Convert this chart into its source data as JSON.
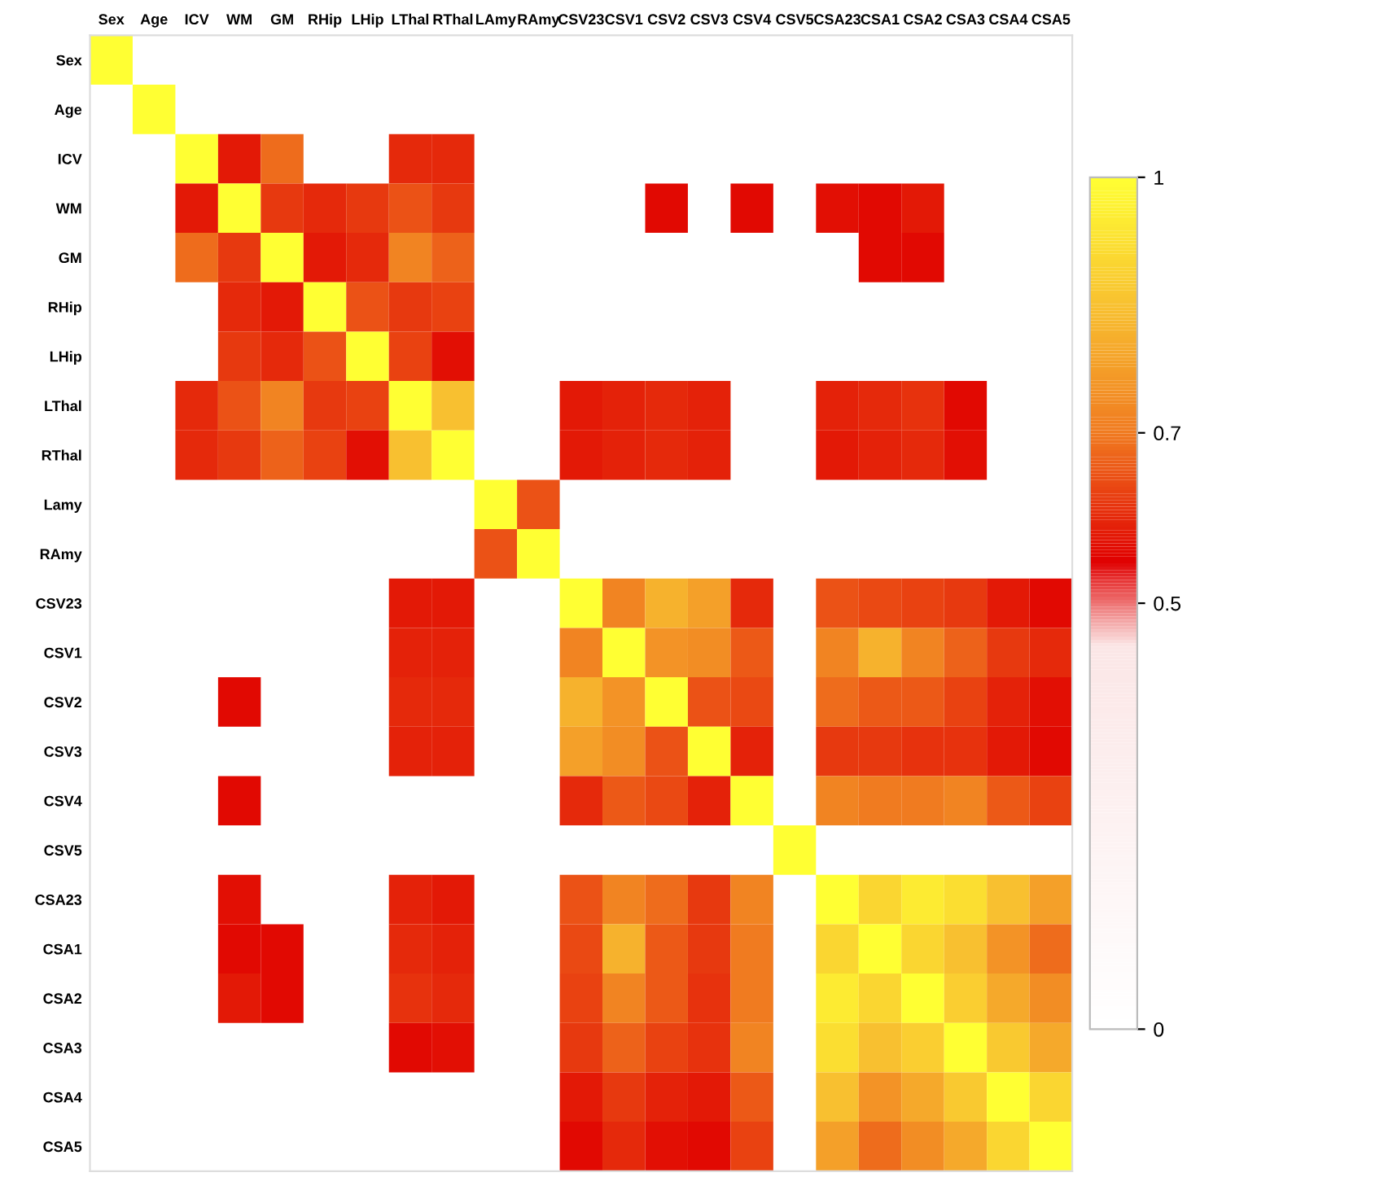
{
  "chart_data": {
    "type": "heatmap",
    "categories": [
      "Sex",
      "Age",
      "ICV",
      "WM",
      "GM",
      "RHip",
      "LHip",
      "LThal",
      "RThal",
      "LAmy",
      "RAmy",
      "CSV23",
      "CSV1",
      "CSV2",
      "CSV3",
      "CSV4",
      "CSV5",
      "CSA23",
      "CSA1",
      "CSA2",
      "CSA3",
      "CSA4",
      "CSA5"
    ],
    "y_categories": [
      "Sex",
      "Age",
      "ICV",
      "WM",
      "GM",
      "RHip",
      "LHip",
      "LThal",
      "RThal",
      "Lamy",
      "RAmy",
      "CSV23",
      "CSV1",
      "CSV2",
      "CSV3",
      "CSV4",
      "CSV5",
      "CSA23",
      "CSA1",
      "CSA2",
      "CSA3",
      "CSA4",
      "CSA5"
    ],
    "cells": [
      [
        1,
        null,
        null,
        null,
        null,
        null,
        null,
        null,
        null,
        null,
        null,
        null,
        null,
        null,
        null,
        null,
        null,
        null,
        null,
        null,
        null,
        null,
        null
      ],
      [
        null,
        1,
        null,
        null,
        null,
        null,
        null,
        null,
        null,
        null,
        null,
        null,
        null,
        null,
        null,
        null,
        null,
        null,
        null,
        null,
        null,
        null,
        null
      ],
      [
        null,
        null,
        1,
        0.58,
        0.68,
        null,
        null,
        0.6,
        0.6,
        null,
        null,
        null,
        null,
        null,
        null,
        null,
        null,
        null,
        null,
        null,
        null,
        null,
        null
      ],
      [
        null,
        null,
        0.58,
        1,
        0.62,
        0.6,
        0.62,
        0.65,
        0.62,
        null,
        null,
        null,
        null,
        0.56,
        null,
        0.56,
        null,
        0.57,
        0.56,
        0.58,
        null,
        null,
        null
      ],
      [
        null,
        null,
        0.68,
        0.62,
        1,
        0.58,
        0.6,
        0.72,
        0.67,
        null,
        null,
        null,
        null,
        null,
        null,
        null,
        null,
        null,
        0.56,
        0.56,
        null,
        null,
        null
      ],
      [
        null,
        null,
        null,
        0.6,
        0.58,
        1,
        0.65,
        0.62,
        0.63,
        null,
        null,
        null,
        null,
        null,
        null,
        null,
        null,
        null,
        null,
        null,
        null,
        null,
        null
      ],
      [
        null,
        null,
        null,
        0.62,
        0.6,
        0.65,
        1,
        0.63,
        0.57,
        null,
        null,
        null,
        null,
        null,
        null,
        null,
        null,
        null,
        null,
        null,
        null,
        null,
        null
      ],
      [
        null,
        null,
        0.6,
        0.65,
        0.72,
        0.62,
        0.63,
        1,
        0.85,
        null,
        null,
        0.58,
        0.59,
        0.6,
        0.59,
        null,
        null,
        0.59,
        0.6,
        0.61,
        0.56,
        null,
        null
      ],
      [
        null,
        null,
        0.6,
        0.62,
        0.67,
        0.63,
        0.57,
        0.85,
        1,
        null,
        null,
        0.58,
        0.59,
        0.6,
        0.59,
        null,
        null,
        0.58,
        0.59,
        0.6,
        0.57,
        null,
        null
      ],
      [
        null,
        null,
        null,
        null,
        null,
        null,
        null,
        null,
        null,
        1,
        0.65,
        null,
        null,
        null,
        null,
        null,
        null,
        null,
        null,
        null,
        null,
        null,
        null
      ],
      [
        null,
        null,
        null,
        null,
        null,
        null,
        null,
        null,
        null,
        0.65,
        1,
        null,
        null,
        null,
        null,
        null,
        null,
        null,
        null,
        null,
        null,
        null,
        null
      ],
      [
        null,
        null,
        null,
        null,
        null,
        null,
        null,
        0.58,
        0.58,
        null,
        null,
        1,
        0.72,
        0.82,
        0.78,
        0.6,
        null,
        0.65,
        0.64,
        0.63,
        0.62,
        0.58,
        0.56
      ],
      [
        null,
        null,
        null,
        null,
        null,
        null,
        null,
        0.59,
        0.59,
        null,
        null,
        0.72,
        1,
        0.75,
        0.74,
        0.66,
        null,
        0.72,
        0.82,
        0.72,
        0.67,
        0.62,
        0.6
      ],
      [
        null,
        null,
        null,
        0.56,
        null,
        null,
        null,
        0.6,
        0.6,
        null,
        null,
        0.82,
        0.75,
        1,
        0.65,
        0.64,
        null,
        0.68,
        0.66,
        0.66,
        0.63,
        0.59,
        0.57
      ],
      [
        null,
        null,
        null,
        null,
        null,
        null,
        null,
        0.59,
        0.59,
        null,
        null,
        0.78,
        0.74,
        0.65,
        1,
        0.59,
        null,
        0.62,
        0.62,
        0.61,
        0.61,
        0.58,
        0.56
      ],
      [
        null,
        null,
        null,
        0.56,
        null,
        null,
        null,
        null,
        null,
        null,
        null,
        0.6,
        0.66,
        0.64,
        0.59,
        1,
        null,
        0.72,
        0.7,
        0.7,
        0.72,
        0.66,
        0.63
      ],
      [
        null,
        null,
        null,
        null,
        null,
        null,
        null,
        null,
        null,
        null,
        null,
        null,
        null,
        null,
        null,
        null,
        1,
        null,
        null,
        null,
        null,
        null,
        null
      ],
      [
        null,
        null,
        null,
        0.57,
        null,
        null,
        null,
        0.59,
        0.58,
        null,
        null,
        0.65,
        0.72,
        0.68,
        0.62,
        0.72,
        null,
        1,
        0.9,
        0.95,
        0.92,
        0.85,
        0.78
      ],
      [
        null,
        null,
        null,
        0.56,
        0.56,
        null,
        null,
        0.6,
        0.59,
        null,
        null,
        0.64,
        0.82,
        0.66,
        0.62,
        0.7,
        null,
        0.9,
        1,
        0.9,
        0.85,
        0.75,
        0.68
      ],
      [
        null,
        null,
        null,
        0.58,
        0.56,
        null,
        null,
        0.61,
        0.6,
        null,
        null,
        0.63,
        0.72,
        0.66,
        0.61,
        0.7,
        null,
        0.95,
        0.9,
        1,
        0.88,
        0.8,
        0.74
      ],
      [
        null,
        null,
        null,
        null,
        null,
        null,
        null,
        0.56,
        0.57,
        null,
        null,
        0.62,
        0.67,
        0.63,
        0.61,
        0.72,
        null,
        0.92,
        0.85,
        0.88,
        1,
        0.87,
        0.8
      ],
      [
        null,
        null,
        null,
        null,
        null,
        null,
        null,
        null,
        null,
        null,
        null,
        0.58,
        0.62,
        0.59,
        0.58,
        0.66,
        null,
        0.85,
        0.75,
        0.8,
        0.87,
        1,
        0.9
      ],
      [
        null,
        null,
        null,
        null,
        null,
        null,
        null,
        null,
        null,
        null,
        null,
        0.56,
        0.6,
        0.57,
        0.56,
        0.63,
        null,
        0.78,
        0.68,
        0.74,
        0.8,
        0.9,
        1
      ]
    ],
    "clim": [
      0,
      1
    ],
    "cticks": [
      0,
      0.5,
      0.7,
      1
    ]
  }
}
